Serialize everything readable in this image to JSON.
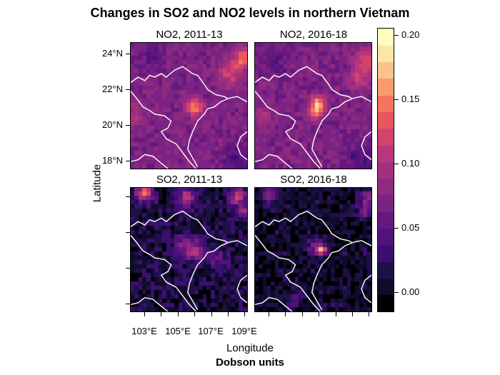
{
  "chart_data": {
    "type": "heatmap",
    "title": "Changes in SO2 and NO2 levels in northern Vietnam",
    "xlabel": "Longitude",
    "ylabel": "Latitude",
    "colorbar_label": "Dobson units",
    "colorbar": {
      "range": [
        -0.015,
        0.205
      ],
      "ticks": [
        "0.00",
        "0.05",
        "0.10",
        "0.15",
        "0.20"
      ],
      "tick_values": [
        0.0,
        0.05,
        0.1,
        0.15,
        0.2
      ],
      "colors": [
        "#000004",
        "#0f0b2c",
        "#1f1147",
        "#3b0f70",
        "#51127c",
        "#65197f",
        "#7b2382",
        "#8f2a81",
        "#a3307e",
        "#b8377a",
        "#d3436e",
        "#e8575e",
        "#f4755c",
        "#fb9b6c",
        "#fdc28b",
        "#fde5a7",
        "#fcfdbf"
      ]
    },
    "x_ticks": [
      "103°E",
      "105°E",
      "107°E",
      "109°E"
    ],
    "x_tick_values": [
      103,
      104,
      105,
      106,
      107,
      108,
      109
    ],
    "y_ticks": [
      "24°N",
      "22°N",
      "20°N",
      "18°N"
    ],
    "y_tick_values": [
      24,
      22,
      20,
      18
    ],
    "lon_range": [
      102.15,
      109.2
    ],
    "lat_range": [
      17.5,
      24.65
    ],
    "panels": [
      {
        "title": "NO2, 2011-13",
        "base": 0.07,
        "noise": 0.012,
        "hotspots": [
          {
            "lon": 105.9,
            "lat": 21.0,
            "amp": 0.06,
            "r": 0.5
          },
          {
            "lon": 106.3,
            "lat": 20.9,
            "amp": 0.04,
            "r": 0.4
          },
          {
            "lon": 109.0,
            "lat": 23.8,
            "amp": 0.07,
            "r": 0.6
          },
          {
            "lon": 108.2,
            "lat": 22.9,
            "amp": 0.05,
            "r": 0.7
          },
          {
            "lon": 102.4,
            "lat": 20.5,
            "amp": 0.03,
            "r": 0.6
          },
          {
            "lon": 103.5,
            "lat": 23.8,
            "amp": -0.02,
            "r": 0.8
          },
          {
            "lon": 108.5,
            "lat": 18.0,
            "amp": -0.03,
            "r": 0.8
          }
        ]
      },
      {
        "title": "NO2, 2016-18",
        "base": 0.07,
        "noise": 0.012,
        "hotspots": [
          {
            "lon": 106.0,
            "lat": 21.1,
            "amp": 0.1,
            "r": 0.45
          },
          {
            "lon": 105.8,
            "lat": 20.6,
            "amp": 0.05,
            "r": 0.4
          },
          {
            "lon": 108.8,
            "lat": 23.6,
            "amp": 0.05,
            "r": 0.7
          },
          {
            "lon": 108.5,
            "lat": 22.6,
            "amp": 0.04,
            "r": 0.6
          },
          {
            "lon": 102.6,
            "lat": 20.5,
            "amp": 0.03,
            "r": 0.6
          },
          {
            "lon": 103.5,
            "lat": 23.5,
            "amp": -0.02,
            "r": 0.8
          },
          {
            "lon": 108.5,
            "lat": 18.0,
            "amp": -0.03,
            "r": 0.8
          }
        ]
      },
      {
        "title": "SO2, 2011-13",
        "base": 0.012,
        "noise": 0.022,
        "hotspots": [
          {
            "lon": 103.0,
            "lat": 24.3,
            "amp": 0.12,
            "r": 0.5
          },
          {
            "lon": 105.5,
            "lat": 24.0,
            "amp": 0.1,
            "r": 0.5
          },
          {
            "lon": 108.6,
            "lat": 24.1,
            "amp": 0.1,
            "r": 0.5
          },
          {
            "lon": 109.0,
            "lat": 23.3,
            "amp": 0.08,
            "r": 0.3
          },
          {
            "lon": 106.0,
            "lat": 21.0,
            "amp": 0.09,
            "r": 0.6
          },
          {
            "lon": 105.3,
            "lat": 21.5,
            "amp": 0.05,
            "r": 0.5
          },
          {
            "lon": 107.5,
            "lat": 20.5,
            "amp": 0.03,
            "r": 0.7
          }
        ]
      },
      {
        "title": "SO2, 2016-18",
        "base": 0.005,
        "noise": 0.02,
        "hotspots": [
          {
            "lon": 106.2,
            "lat": 21.0,
            "amp": 0.17,
            "r": 0.25
          },
          {
            "lon": 105.8,
            "lat": 21.2,
            "amp": 0.06,
            "r": 0.5
          },
          {
            "lon": 103.0,
            "lat": 24.2,
            "amp": 0.08,
            "r": 0.45
          },
          {
            "lon": 109.0,
            "lat": 24.0,
            "amp": 0.07,
            "r": 0.5
          },
          {
            "lon": 108.8,
            "lat": 23.2,
            "amp": 0.05,
            "r": 0.4
          },
          {
            "lon": 104.5,
            "lat": 18.2,
            "amp": 0.03,
            "r": 0.5
          }
        ]
      }
    ]
  }
}
